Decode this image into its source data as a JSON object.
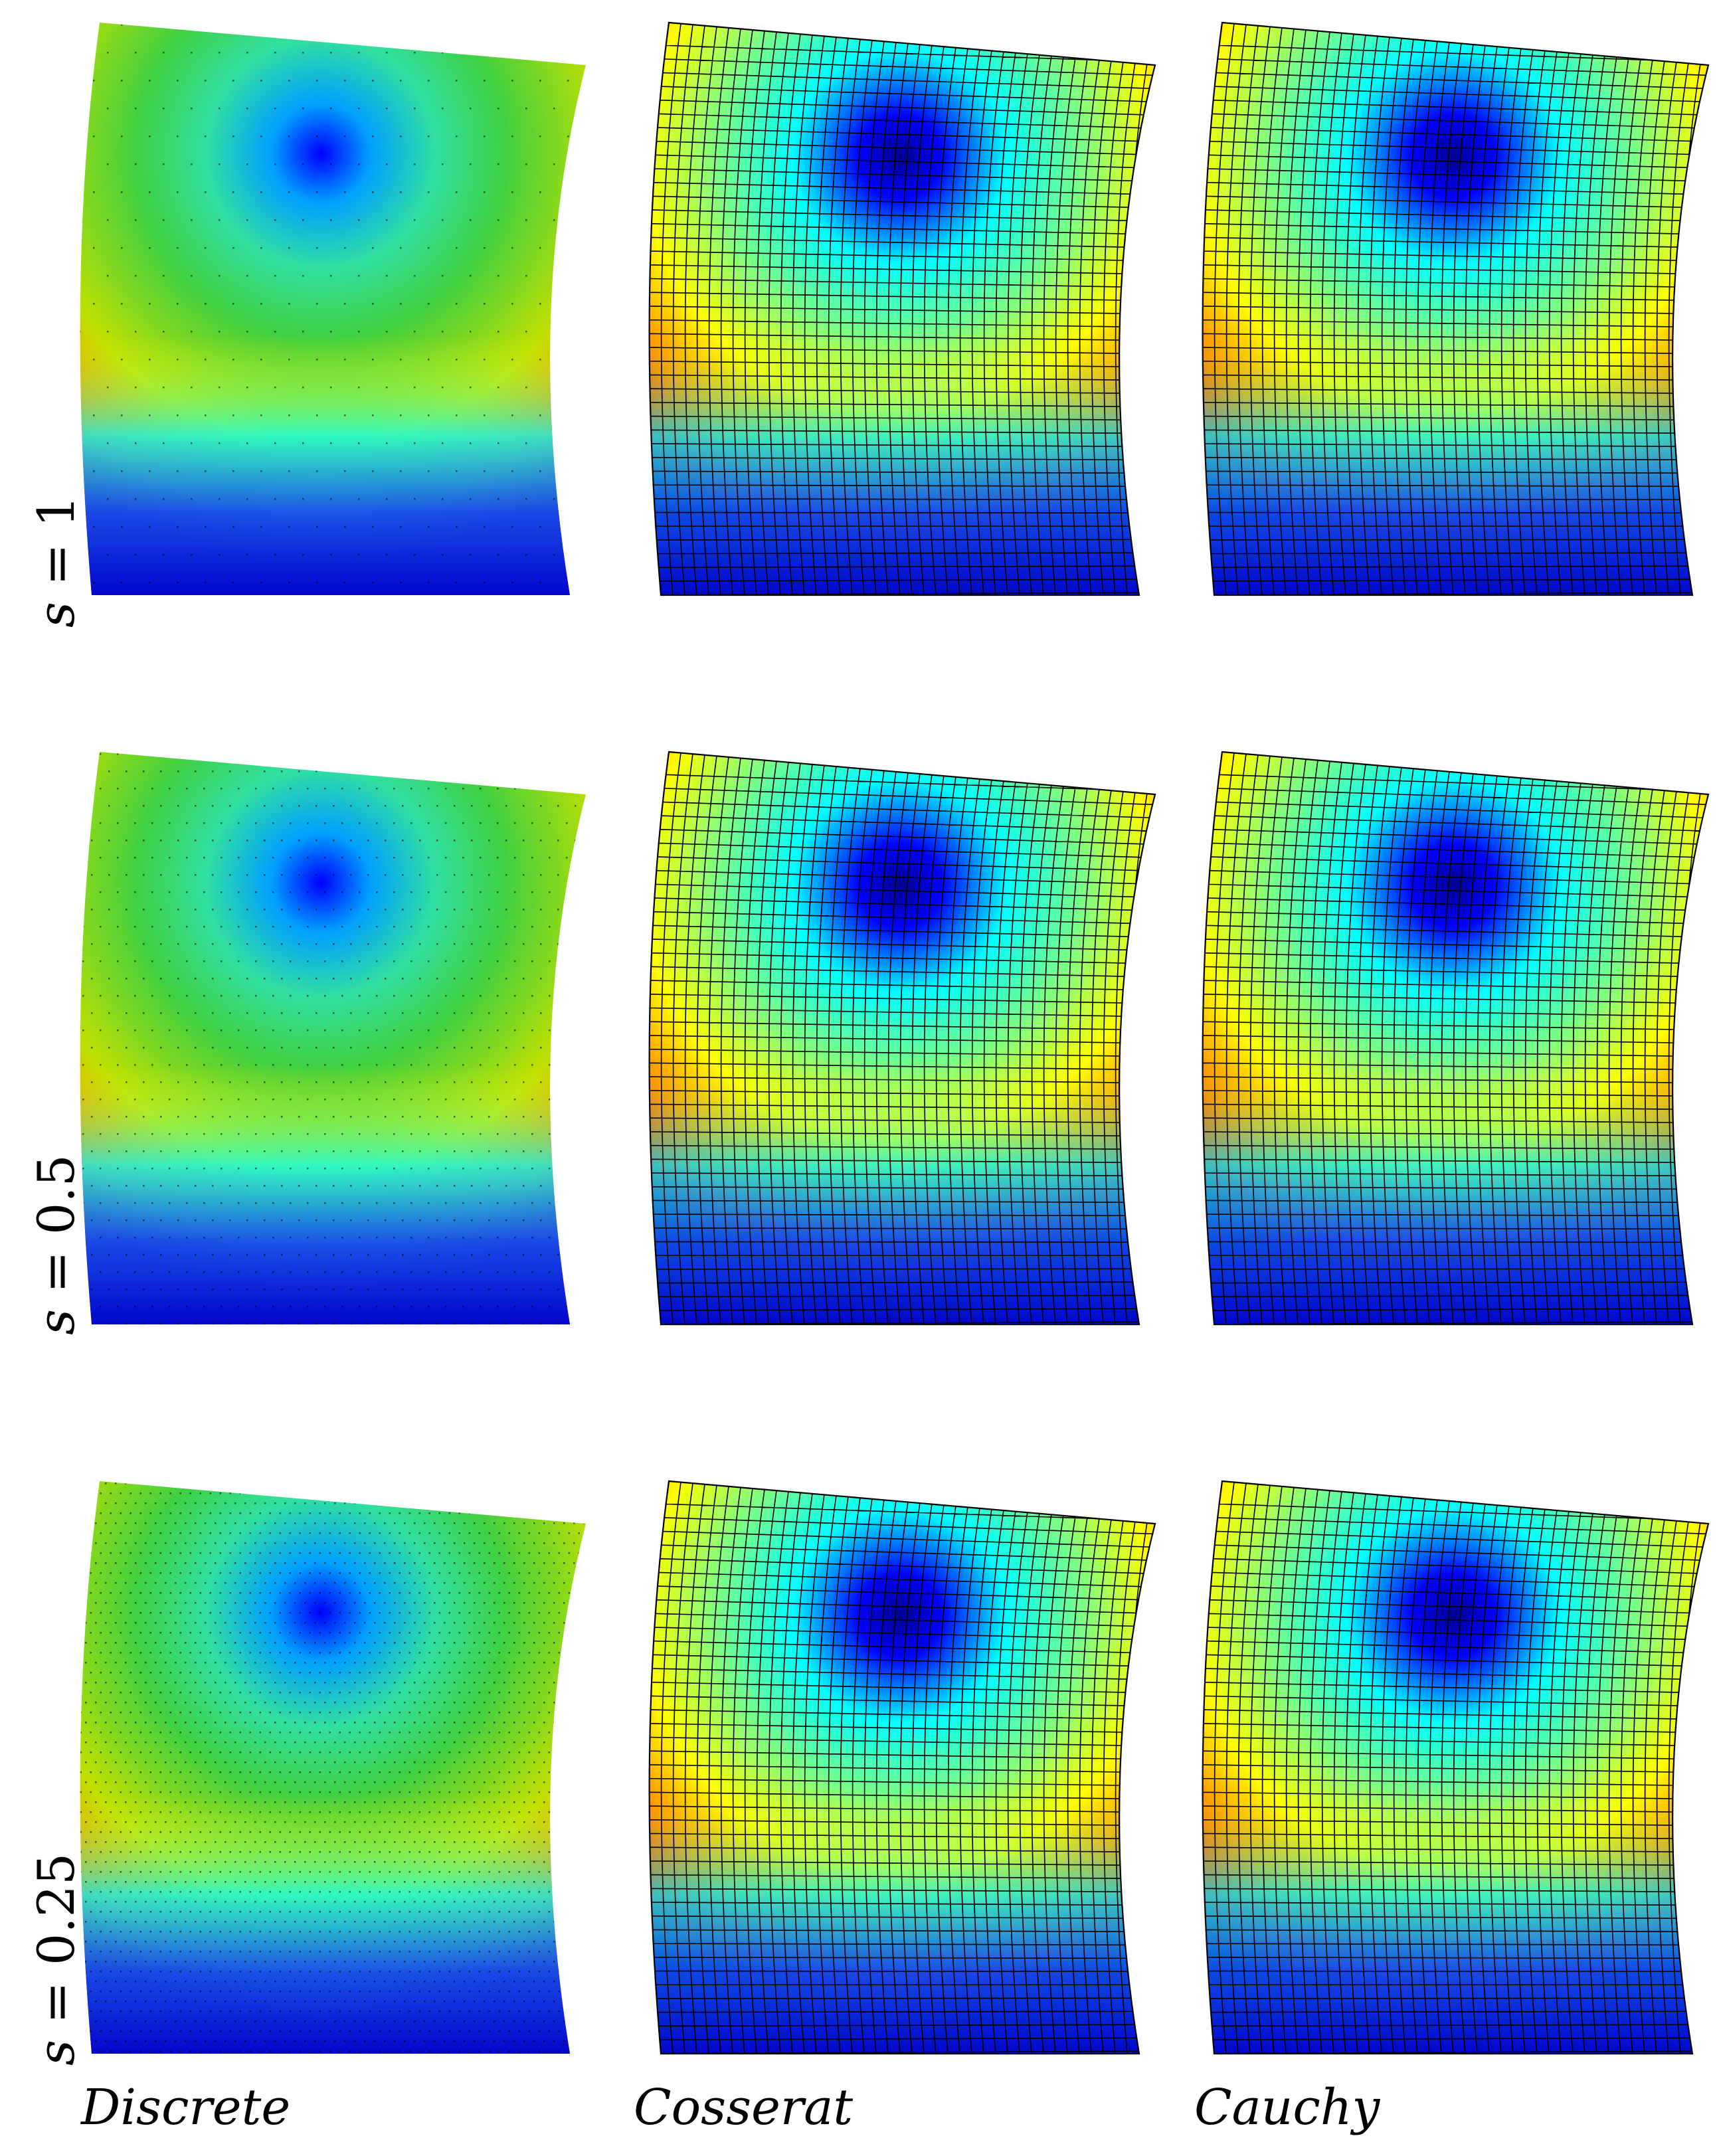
{
  "columns": [
    {
      "id": "discrete",
      "label": "Discrete"
    },
    {
      "id": "cosserat",
      "label": "Cosserat"
    },
    {
      "id": "cauchy",
      "label": "Cauchy"
    }
  ],
  "rows": [
    {
      "var": "s",
      "op": "=",
      "value": "1"
    },
    {
      "var": "s",
      "op": "=",
      "value": "0.5"
    },
    {
      "var": "s",
      "op": "=",
      "value": "0.25"
    }
  ],
  "colormap": [
    "#00008f",
    "#0000ff",
    "#00ffff",
    "#7fff7f",
    "#ffff00",
    "#ff7f00",
    "#ff0000",
    "#800000"
  ]
}
